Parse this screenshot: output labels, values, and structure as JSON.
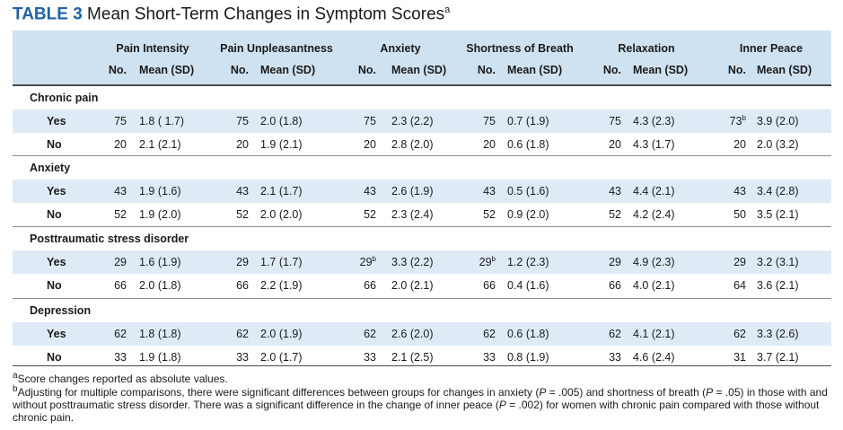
{
  "title": {
    "label": "TABLE 3",
    "text": "Mean Short-Term Changes in Symptom Scores",
    "sup": "a"
  },
  "columns": [
    {
      "name": "Pain Intensity",
      "no": "No.",
      "mean": "Mean (SD)"
    },
    {
      "name": "Pain Unpleasantness",
      "no": "No.",
      "mean": "Mean (SD)"
    },
    {
      "name": "Anxiety",
      "no": "No.",
      "mean": "Mean (SD)"
    },
    {
      "name": "Shortness of Breath",
      "no": "No.",
      "mean": "Mean (SD)"
    },
    {
      "name": "Relaxation",
      "no": "No.",
      "mean": "Mean (SD)"
    },
    {
      "name": "Inner Peace",
      "no": "No.",
      "mean": "Mean (SD)"
    }
  ],
  "groups": [
    {
      "name": "Chronic pain",
      "rows": [
        {
          "label": "Yes",
          "cells": [
            {
              "n": "75",
              "m": "1.8 ( 1.7)"
            },
            {
              "n": "75",
              "m": "2.0 (1.8)"
            },
            {
              "n": "75",
              "m": "2.3 (2.2)"
            },
            {
              "n": "75",
              "m": "0.7 (1.9)"
            },
            {
              "n": "75",
              "m": "4.3 (2.3)"
            },
            {
              "n": "73",
              "sup": "b",
              "m": "3.9 (2.0)"
            }
          ]
        },
        {
          "label": "No",
          "cells": [
            {
              "n": "20",
              "m": "2.1 (2.1)"
            },
            {
              "n": "20",
              "m": "1.9 (2.1)"
            },
            {
              "n": "20",
              "m": "2.8 (2.0)"
            },
            {
              "n": "20",
              "m": "0.6 (1.8)"
            },
            {
              "n": "20",
              "m": "4.3 (1.7)"
            },
            {
              "n": "20",
              "m": "2.0 (3.2)"
            }
          ]
        }
      ]
    },
    {
      "name": "Anxiety",
      "rows": [
        {
          "label": "Yes",
          "cells": [
            {
              "n": "43",
              "m": "1.9 (1.6)"
            },
            {
              "n": "43",
              "m": "2.1 (1.7)"
            },
            {
              "n": "43",
              "m": "2.6 (1.9)"
            },
            {
              "n": "43",
              "m": "0.5 (1.6)"
            },
            {
              "n": "43",
              "m": "4.4 (2.1)"
            },
            {
              "n": "43",
              "m": "3.4 (2.8)"
            }
          ]
        },
        {
          "label": "No",
          "cells": [
            {
              "n": "52",
              "m": "1.9 (2.0)"
            },
            {
              "n": "52",
              "m": "2.0 (2.0)"
            },
            {
              "n": "52",
              "m": "2.3 (2.4)"
            },
            {
              "n": "52",
              "m": "0.9 (2.0)"
            },
            {
              "n": "52",
              "m": "4.2 (2.4)"
            },
            {
              "n": "50",
              "m": "3.5 (2.1)"
            }
          ]
        }
      ]
    },
    {
      "name": "Posttraumatic stress disorder",
      "rows": [
        {
          "label": "Yes",
          "cells": [
            {
              "n": "29",
              "m": "1.6 (1.9)"
            },
            {
              "n": "29",
              "m": "1.7 (1.7)"
            },
            {
              "n": "29",
              "sup": "b",
              "m": "3.3 (2.2)"
            },
            {
              "n": "29",
              "sup": "b",
              "m": "1.2 (2.3)"
            },
            {
              "n": "29",
              "m": "4.9 (2.3)"
            },
            {
              "n": "29",
              "m": "3.2 (3.1)"
            }
          ]
        },
        {
          "label": "No",
          "cells": [
            {
              "n": "66",
              "m": "2.0 (1.8)"
            },
            {
              "n": "66",
              "m": "2.2 (1.9)"
            },
            {
              "n": "66",
              "m": "2.0 (2.1)"
            },
            {
              "n": "66",
              "m": "0.4 (1.6)"
            },
            {
              "n": "66",
              "m": "4.0 (2.1)"
            },
            {
              "n": "64",
              "m": "3.6 (2.1)"
            }
          ]
        }
      ]
    },
    {
      "name": "Depression",
      "rows": [
        {
          "label": "Yes",
          "cells": [
            {
              "n": "62",
              "m": "1.8 (1.8)"
            },
            {
              "n": "62",
              "m": "2.0 (1.9)"
            },
            {
              "n": "62",
              "m": "2.6 (2.0)"
            },
            {
              "n": "62",
              "m": "0.6 (1.8)"
            },
            {
              "n": "62",
              "m": "4.1 (2.1)"
            },
            {
              "n": "62",
              "m": "3.3 (2.6)"
            }
          ]
        },
        {
          "label": "No",
          "cells": [
            {
              "n": "33",
              "m": "1.9 (1.8)"
            },
            {
              "n": "33",
              "m": "2.0 (1.7)"
            },
            {
              "n": "33",
              "m": "2.1 (2.5)"
            },
            {
              "n": "33",
              "m": "0.8 (1.9)"
            },
            {
              "n": "33",
              "m": "4.6 (2.4)"
            },
            {
              "n": "31",
              "m": "3.7 (2.1)"
            }
          ]
        }
      ]
    }
  ],
  "footnotes": {
    "a": {
      "mark": "a",
      "text": "Score changes reported as absolute values."
    },
    "b": {
      "mark": "b",
      "s1": "Adjusting for multiple comparisons, there were significant differences between groups for changes in anxiety (",
      "p1": "P",
      "s2": " = .005) and shortness of breath (",
      "p2": "P",
      "s3": " = .05) in those with and without posttraumatic stress disorder. There was a significant difference in the change of inner peace (",
      "p3": "P",
      "s4": " = .002) for women with chronic pain compared with those without chronic pain."
    }
  },
  "colors": {
    "title_label": "#1f62a6",
    "header_band": "#cfe2f1",
    "row_stripe": "#deebf6"
  }
}
